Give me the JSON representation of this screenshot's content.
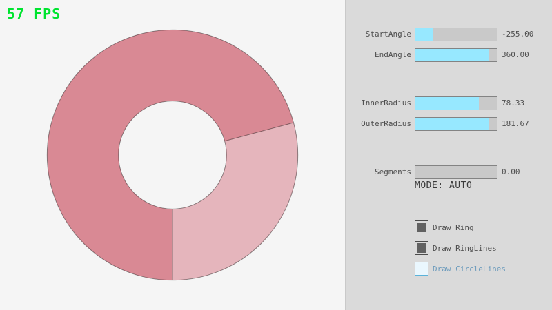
{
  "fps": {
    "label": "57 FPS",
    "color": "#00e430"
  },
  "ring": {
    "start_angle": -255.0,
    "end_angle": 360.0,
    "inner_radius": 78.33,
    "outer_radius": 181.67,
    "segments": 0.0,
    "colors": {
      "overlap_fill": "#d98994",
      "single_fill": "#e5b5bc",
      "outline": "rgba(0,0,0,0.42)"
    }
  },
  "panel": {
    "sliders": [
      {
        "label": "StartAngle",
        "value": "-255.00",
        "fill_pct": 21.7
      },
      {
        "label": "EndAngle",
        "value": "360.00",
        "fill_pct": 90.0
      },
      {
        "label": "InnerRadius",
        "value": "78.33",
        "fill_pct": 78.3
      },
      {
        "label": "OuterRadius",
        "value": "181.67",
        "fill_pct": 90.8
      },
      {
        "label": "Segments",
        "value": "0.00",
        "fill_pct": 0
      }
    ],
    "mode_text": "MODE: AUTO",
    "checkboxes": [
      {
        "label": "Draw Ring",
        "checked": true,
        "focused": false
      },
      {
        "label": "Draw RingLines",
        "checked": true,
        "focused": false
      },
      {
        "label": "Draw CircleLines",
        "checked": false,
        "focused": true
      }
    ],
    "colors": {
      "slider_fill": "#97e8ff",
      "slider_bg": "#c9c9c9",
      "slider_border": "#838383",
      "focus_text": "#6c9bbc"
    }
  }
}
